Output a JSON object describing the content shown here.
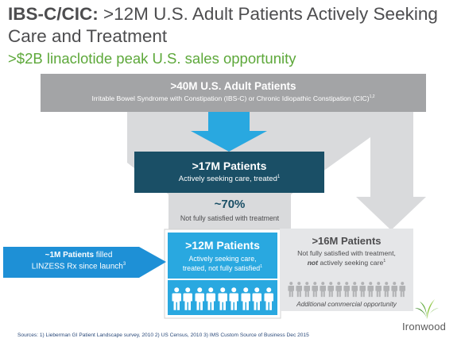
{
  "title": {
    "bold": "IBS-C/CIC:",
    "rest": " >12M U.S. Adult Patients Actively Seeking Care and Treatment"
  },
  "subtitle": ">$2B linaclotide peak U.S. sales opportunity",
  "top_band": {
    "headline": ">40M U.S. Adult Patients",
    "sub": "Irritable Bowel Syndrome with Constipation (IBS-C) or Chronic Idiopathic Constipation (CIC)",
    "sup": "1,2"
  },
  "box17": {
    "headline": ">17M Patients",
    "sub": "Actively seeking care, treated",
    "sup": "1"
  },
  "pct": {
    "value": "~70%",
    "label": "Not fully satisfied with treatment"
  },
  "box12": {
    "headline": ">12M Patients",
    "line1": "Actively seeking care,",
    "line2": "treated, not fully satisfied",
    "sup": "1",
    "people_count": 9
  },
  "box16": {
    "headline": ">16M Patients",
    "line1": "Not fully satisfied with treatment,",
    "line2_emph": "not",
    "line2_rest": " actively seeking care",
    "sup": "1",
    "people_count": 15,
    "note": "Additional commercial opportunity"
  },
  "callout": {
    "bold": "~1M Patients",
    "text1": " filled",
    "text2": "LINZESS Rx since launch",
    "sup": "3"
  },
  "sources": "Sources: 1) Lieberman GI Patient Landscape survey, 2010 2) US Census, 2010 3) IMS Custom Source of Business  Dec 2015",
  "logo": {
    "name": "Ironwood"
  },
  "colors": {
    "gray_band": "#a3a4a6",
    "light_gray": "#d6d7d9",
    "navy": "#1a4f66",
    "sky": "#29a8e0",
    "blue_callout": "#1e90d6",
    "green": "#5da83a"
  }
}
